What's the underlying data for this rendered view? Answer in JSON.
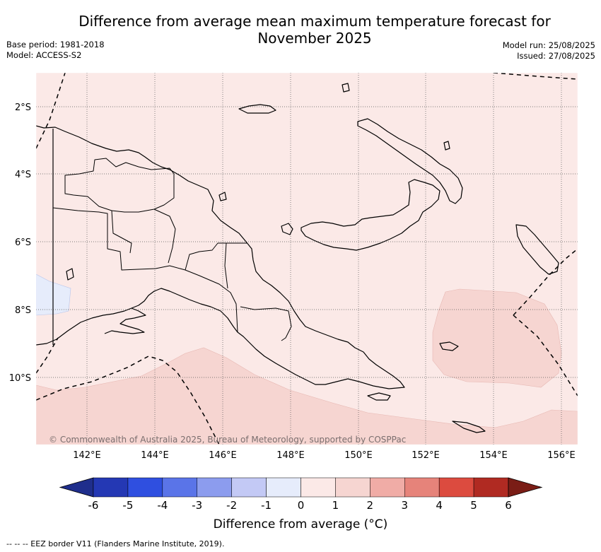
{
  "title": "Difference from average mean maximum temperature forecast for November 2025",
  "meta": {
    "base_period": "Base period: 1981-2018",
    "model": "Model: ACCESS-S2",
    "model_run": "Model run: 25/08/2025",
    "issued": "Issued: 27/08/2025"
  },
  "map": {
    "lat_labels": [
      "2°S",
      "4°S",
      "6°S",
      "8°S",
      "10°S"
    ],
    "lon_labels": [
      "142°E",
      "144°E",
      "146°E",
      "148°E",
      "150°E",
      "152°E",
      "154°E",
      "156°E"
    ],
    "copyright": "© Commonwealth of Australia 2025, Bureau of Meteorology, supported by COSPPac",
    "colors": {
      "land_outline": "#000000",
      "neutral_positive": "#fbe9e7",
      "warm_1_2": "#f6d5d1",
      "cool_minus1_0": "#e6ecfb"
    }
  },
  "colorbar": {
    "tick_labels": [
      "-6",
      "-5",
      "-4",
      "-3",
      "-2",
      "-1",
      "0",
      "1",
      "2",
      "3",
      "4",
      "5",
      "6"
    ],
    "colors": [
      "#1f2e8c",
      "#2438b4",
      "#2f4fe0",
      "#5a74e8",
      "#8c9cee",
      "#c3c9f5",
      "#e6ecfb",
      "#fbe9e7",
      "#f6d5d1",
      "#f0aca6",
      "#e6837a",
      "#dc4b3f",
      "#b02a22",
      "#7a1d16"
    ],
    "label": "Difference from average (°C)"
  },
  "footnote": "--  --  -- EEZ border V11 (Flanders Marine Institute, 2019)."
}
